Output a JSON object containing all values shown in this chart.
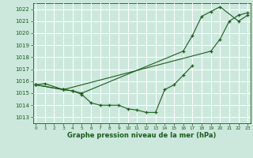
{
  "title": "Graphe pression niveau de la mer (hPa)",
  "bg_color": "#cce8dd",
  "line_color": "#1a5c1a",
  "grid_color": "#ffffff",
  "xlim": [
    -0.3,
    23.3
  ],
  "ylim": [
    1012.5,
    1022.5
  ],
  "yticks": [
    1013,
    1014,
    1015,
    1016,
    1017,
    1018,
    1019,
    1020,
    1021,
    1022
  ],
  "xticks": [
    0,
    1,
    2,
    3,
    4,
    5,
    6,
    7,
    8,
    9,
    10,
    11,
    12,
    13,
    14,
    15,
    16,
    17,
    18,
    19,
    20,
    21,
    22,
    23
  ],
  "line1_x": [
    0,
    1,
    3,
    4,
    5,
    6,
    7,
    8,
    9,
    10,
    11,
    12,
    13,
    14,
    15,
    16,
    17
  ],
  "line1_y": [
    1015.7,
    1015.8,
    1015.3,
    1015.2,
    1014.9,
    1014.2,
    1014.0,
    1014.0,
    1014.0,
    1013.7,
    1013.6,
    1013.4,
    1013.4,
    1015.3,
    1015.7,
    1016.5,
    1017.3
  ],
  "line2_x": [
    0,
    3,
    4,
    5,
    16,
    17,
    18,
    19,
    20,
    22,
    23
  ],
  "line2_y": [
    1015.7,
    1015.3,
    1015.2,
    1015.0,
    1018.5,
    1019.8,
    1021.4,
    1021.8,
    1022.2,
    1021.0,
    1021.5
  ],
  "line3_x": [
    0,
    3,
    19,
    20,
    21,
    22,
    23
  ],
  "line3_y": [
    1015.7,
    1015.3,
    1018.5,
    1019.5,
    1021.0,
    1021.5,
    1021.7
  ]
}
